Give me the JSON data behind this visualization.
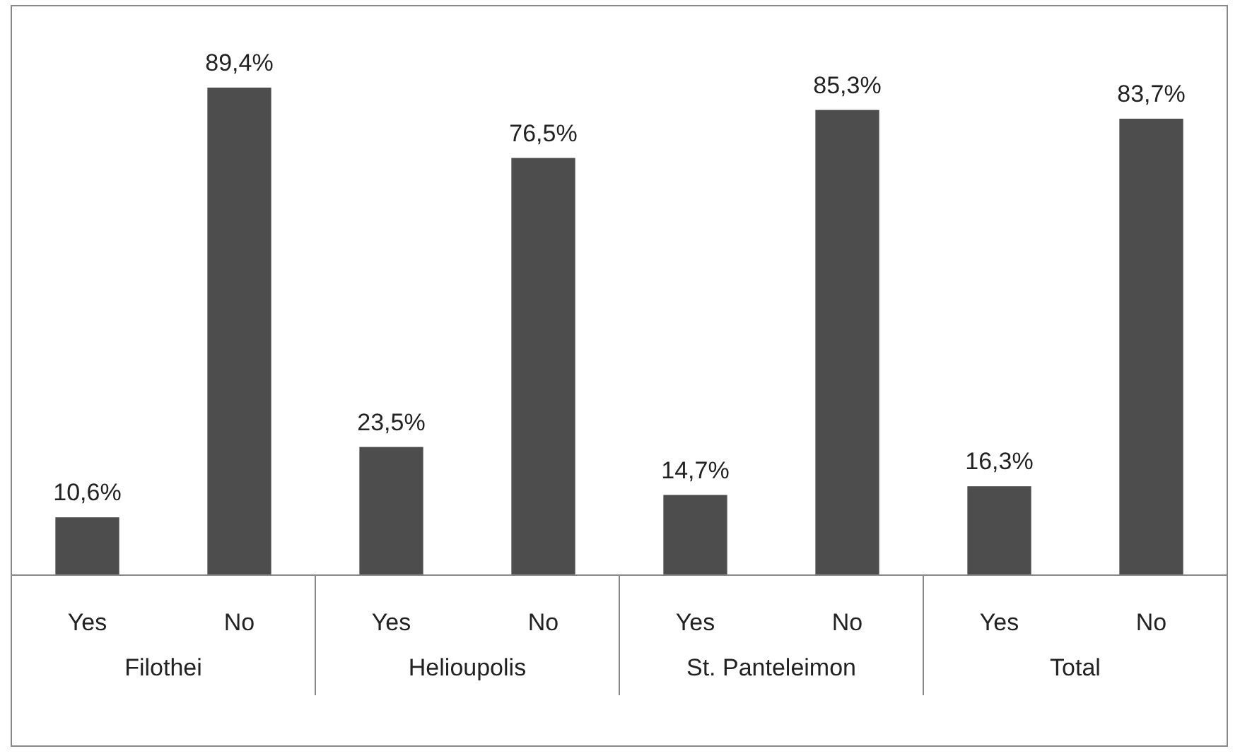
{
  "chart_data": {
    "type": "bar",
    "categories": [
      "Yes",
      "No",
      "Yes",
      "No",
      "Yes",
      "No",
      "Yes",
      "No"
    ],
    "values": [
      10.6,
      89.4,
      23.5,
      76.5,
      14.7,
      85.3,
      16.3,
      83.7
    ],
    "value_labels": [
      "10,6%",
      "89,4%",
      "23,5%",
      "76,5%",
      "14,7%",
      "85,3%",
      "16,3%",
      "83,7%"
    ],
    "color": "#4d4d4d",
    "annotations": [
      "Filothei",
      "Helioupolis",
      "St. Panteleimon",
      "Total"
    ]
  }
}
